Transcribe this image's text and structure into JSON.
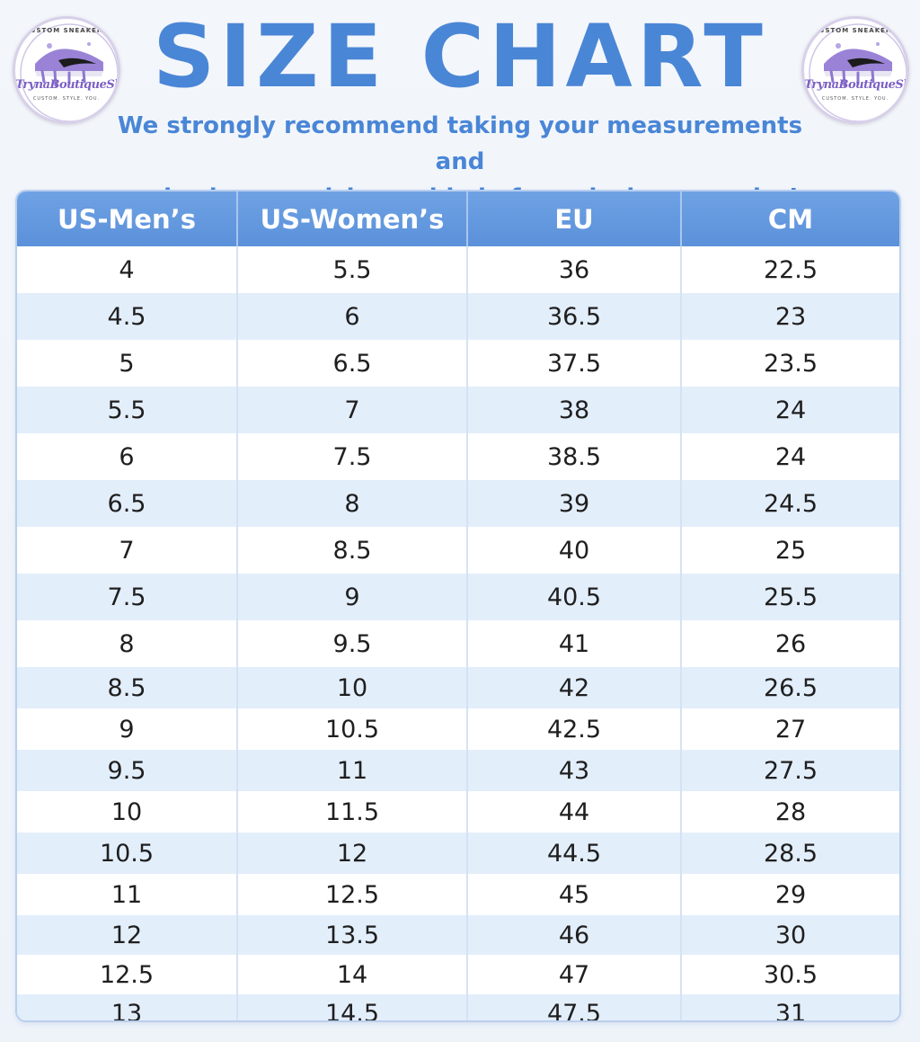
{
  "header": {
    "title": "SIZE CHART",
    "subtitle_line1": "We strongly recommend taking your measurements and",
    "subtitle_line2": "reviewing our sizing guide before placing an order!"
  },
  "logo": {
    "top_text": "CUSTOM SNEAKERS",
    "brand": "TrynaBoutiqueShop",
    "tagline": "CUSTOM. STYLE. YOU."
  },
  "colors": {
    "accent": "#4a86d6",
    "header_bg": "#5f95dc",
    "row_alt": "#e3eefb",
    "logo_purple": "#7b5fc4"
  },
  "table": {
    "columns": [
      "US-Men’s",
      "US-Women’s",
      "EU",
      "CM"
    ],
    "rows": [
      [
        "4",
        "5.5",
        "36",
        "22.5"
      ],
      [
        "4.5",
        "6",
        "36.5",
        "23"
      ],
      [
        "5",
        "6.5",
        "37.5",
        "23.5"
      ],
      [
        "5.5",
        "7",
        "38",
        "24"
      ],
      [
        "6",
        "7.5",
        "38.5",
        "24"
      ],
      [
        "6.5",
        "8",
        "39",
        "24.5"
      ],
      [
        "7",
        "8.5",
        "40",
        "25"
      ],
      [
        "7.5",
        "9",
        "40.5",
        "25.5"
      ],
      [
        "8",
        "9.5",
        "41",
        "26"
      ],
      [
        "8.5",
        "10",
        "42",
        "26.5"
      ],
      [
        "9",
        "10.5",
        "42.5",
        "27"
      ],
      [
        "9.5",
        "11",
        "43",
        "27.5"
      ],
      [
        "10",
        "11.5",
        "44",
        "28"
      ],
      [
        "10.5",
        "12",
        "44.5",
        "28.5"
      ],
      [
        "11",
        "12.5",
        "45",
        "29"
      ],
      [
        "12",
        "13.5",
        "46",
        "30"
      ],
      [
        "12.5",
        "14",
        "47",
        "30.5"
      ],
      [
        "13",
        "14.5",
        "47.5",
        "31"
      ]
    ]
  }
}
